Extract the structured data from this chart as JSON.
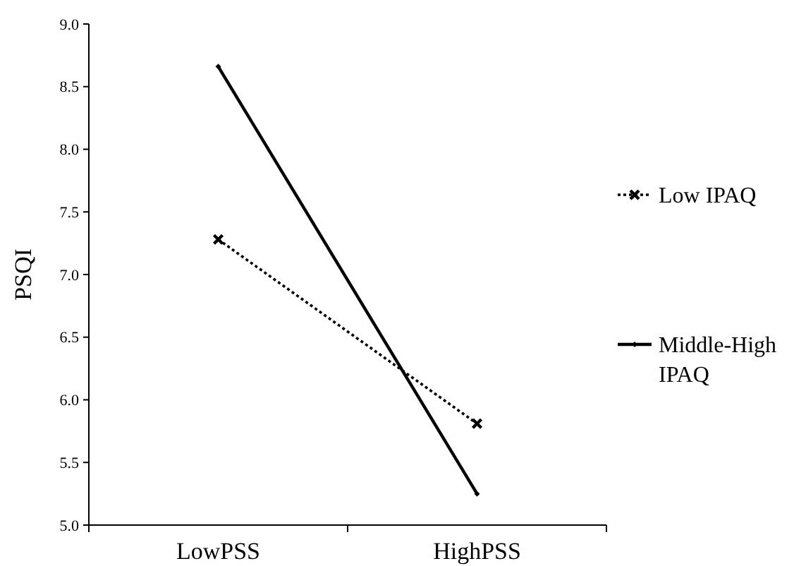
{
  "chart_data": {
    "type": "line",
    "ylabel": "PSQI",
    "categories": [
      "LowPSS",
      "HighPSS"
    ],
    "series": [
      {
        "name": "Low IPAQ",
        "color": "#000000",
        "values": [
          7.28,
          5.81
        ],
        "marker": "cross",
        "line_style": "dotted"
      },
      {
        "name": "Middle-High IPAQ",
        "color": "#000000",
        "values": [
          8.66,
          5.25
        ],
        "marker": "diamond",
        "line_style": "solid"
      }
    ],
    "ylim": [
      5,
      9
    ],
    "yticks": [
      {
        "value": 5,
        "label": "5.0"
      },
      {
        "value": 5.5,
        "label": "5.5"
      },
      {
        "value": 6,
        "label": "6.0"
      },
      {
        "value": 6.5,
        "label": "6.5"
      },
      {
        "value": 7,
        "label": "7.0"
      },
      {
        "value": 7.5,
        "label": "7.5"
      },
      {
        "value": 8,
        "label": "8.0"
      },
      {
        "value": 8.5,
        "label": "8.5"
      },
      {
        "value": 9,
        "label": "9.0"
      }
    ],
    "grid": false,
    "legend": "right"
  }
}
